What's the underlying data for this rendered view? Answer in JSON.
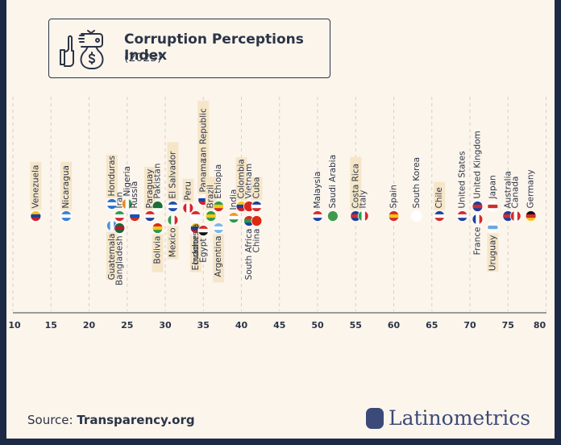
{
  "header": {
    "title": "Corruption Perceptions Index",
    "subtitle": "(2023)",
    "icon": "bribe-money-bag-icon"
  },
  "footer": {
    "source_prefix": "Source: ",
    "source_name": "Transparency.org",
    "brand": "Latinometrics",
    "brand_icon": "latin-america-map-icon"
  },
  "colors": {
    "background": "#fcf5ec",
    "frame": "#1c2a45",
    "text": "#2b3447",
    "highlight": "#f6e6c9",
    "brand": "#3b4a78"
  },
  "chart_data": {
    "type": "scatter",
    "title": "Corruption Perceptions Index (2023)",
    "xlabel": "",
    "ylabel": "",
    "xlim": [
      10,
      80
    ],
    "xticks": [
      10,
      15,
      20,
      25,
      30,
      35,
      40,
      45,
      50,
      55,
      60,
      65,
      70,
      75,
      80
    ],
    "grid": "vertical dashed",
    "highlight_note": "Latin American countries have highlighted labels",
    "points": [
      {
        "country": "Venezuela",
        "score": 13,
        "label": "above",
        "highlight": true
      },
      {
        "country": "Nicaragua",
        "score": 17,
        "label": "above",
        "highlight": true
      },
      {
        "country": "Guatemala",
        "score": 23,
        "label": "below",
        "highlight": true
      },
      {
        "country": "Honduras",
        "score": 23,
        "label": "above",
        "highlight": true
      },
      {
        "country": "Iran",
        "score": 24,
        "label": "above",
        "highlight": false
      },
      {
        "country": "Bangladesh",
        "score": 24,
        "label": "below",
        "highlight": false
      },
      {
        "country": "Nigeria",
        "score": 25,
        "label": "above",
        "highlight": false
      },
      {
        "country": "Russia",
        "score": 26,
        "label": "above",
        "highlight": false
      },
      {
        "country": "Paraguay",
        "score": 28,
        "label": "above",
        "highlight": true
      },
      {
        "country": "Bolivia",
        "score": 29,
        "label": "below",
        "highlight": true
      },
      {
        "country": "Pakistan",
        "score": 29,
        "label": "above",
        "highlight": false
      },
      {
        "country": "El Salvador",
        "score": 31,
        "label": "above",
        "highlight": true
      },
      {
        "country": "Mexico",
        "score": 31,
        "label": "below",
        "highlight": true
      },
      {
        "country": "Peru",
        "score": 33,
        "label": "above",
        "highlight": true
      },
      {
        "country": "Ecuador",
        "score": 34,
        "label": "below",
        "highlight": true
      },
      {
        "country": "Dominican Republic",
        "score": 35,
        "label": "above",
        "highlight": true
      },
      {
        "country": "Indonesia",
        "score": 34,
        "label": "below",
        "highlight": false
      },
      {
        "country": "Panama",
        "score": 35,
        "label": "above",
        "highlight": true
      },
      {
        "country": "Egypt",
        "score": 35,
        "label": "below",
        "highlight": false
      },
      {
        "country": "Brazil",
        "score": 36,
        "label": "above",
        "highlight": true
      },
      {
        "country": "Argentina",
        "score": 37,
        "label": "below",
        "highlight": true
      },
      {
        "country": "Ethiopia",
        "score": 37,
        "label": "above",
        "highlight": false
      },
      {
        "country": "India",
        "score": 39,
        "label": "above",
        "highlight": false
      },
      {
        "country": "Colombia",
        "score": 40,
        "label": "above",
        "highlight": true
      },
      {
        "country": "South Africa",
        "score": 41,
        "label": "below",
        "highlight": false
      },
      {
        "country": "Vietnam",
        "score": 41,
        "label": "above",
        "highlight": false
      },
      {
        "country": "China",
        "score": 42,
        "label": "below",
        "highlight": false
      },
      {
        "country": "Cuba",
        "score": 42,
        "label": "above",
        "highlight": true
      },
      {
        "country": "Malaysia",
        "score": 50,
        "label": "above",
        "highlight": false
      },
      {
        "country": "Saudi Arabia",
        "score": 52,
        "label": "above",
        "highlight": false
      },
      {
        "country": "Costa Rica",
        "score": 55,
        "label": "above",
        "highlight": true
      },
      {
        "country": "Italy",
        "score": 56,
        "label": "above",
        "highlight": false
      },
      {
        "country": "Spain",
        "score": 60,
        "label": "above",
        "highlight": false
      },
      {
        "country": "South Korea",
        "score": 63,
        "label": "above",
        "highlight": false
      },
      {
        "country": "Chile",
        "score": 66,
        "label": "above",
        "highlight": true
      },
      {
        "country": "United States",
        "score": 69,
        "label": "above",
        "highlight": false
      },
      {
        "country": "United Kingdom",
        "score": 71,
        "label": "above",
        "highlight": false
      },
      {
        "country": "France",
        "score": 71,
        "label": "below",
        "highlight": false
      },
      {
        "country": "Japan",
        "score": 73,
        "label": "above",
        "highlight": false
      },
      {
        "country": "Uruguay",
        "score": 73,
        "label": "below",
        "highlight": true
      },
      {
        "country": "Australia",
        "score": 75,
        "label": "above",
        "highlight": false
      },
      {
        "country": "Canada",
        "score": 76,
        "label": "above",
        "highlight": false
      },
      {
        "country": "Germany",
        "score": 78,
        "label": "above",
        "highlight": false
      }
    ]
  }
}
